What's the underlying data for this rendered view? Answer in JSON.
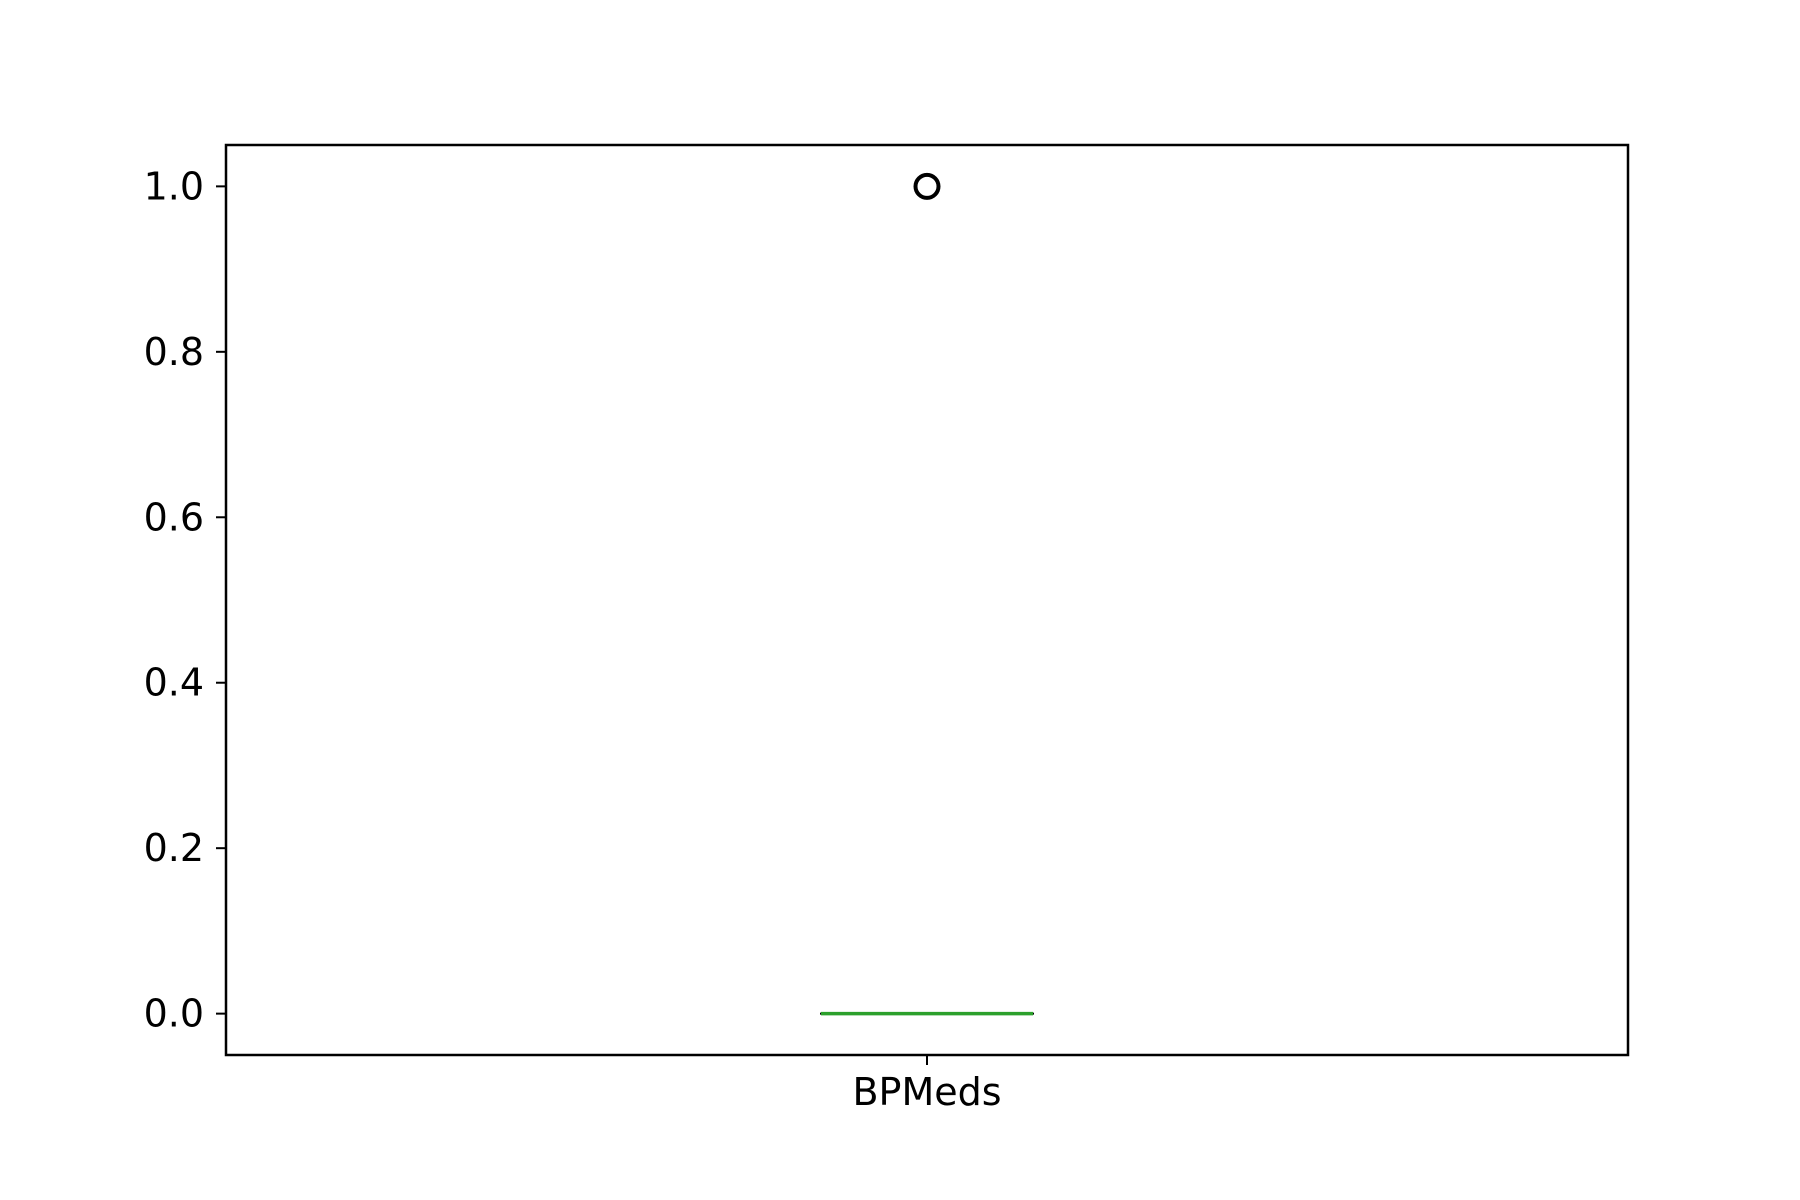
{
  "chart_data": {
    "type": "box",
    "categories": [
      "BPMeds"
    ],
    "boxes": [
      {
        "category": "BPMeds",
        "min": 0.0,
        "q1": 0.0,
        "median": 0.0,
        "q3": 0.0,
        "max": 0.0,
        "outliers": [
          1.0
        ]
      }
    ],
    "title": "",
    "xlabel": "",
    "ylabel": "",
    "ylim": [
      -0.05,
      1.05
    ],
    "yticks": [
      0.0,
      0.2,
      0.4,
      0.6,
      0.8,
      1.0
    ],
    "ytick_labels": [
      "0.0",
      "0.2",
      "0.4",
      "0.6",
      "0.8",
      "1.0"
    ],
    "grid": false,
    "colors": {
      "median": "#2ca02c",
      "box": "#000000",
      "outlier": "#000000",
      "axes": "#000000"
    }
  }
}
